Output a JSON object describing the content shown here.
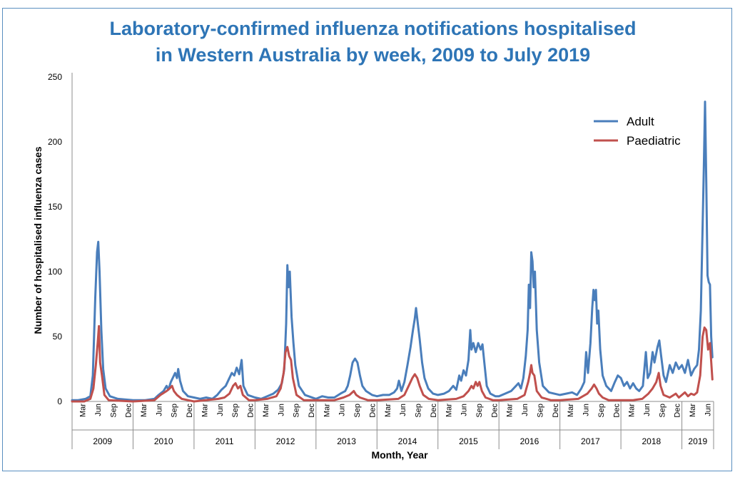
{
  "chart_data": {
    "type": "line",
    "title_lines": [
      "Laboratory-confirmed influenza notifications hospitalised",
      "in Western Australia by week, 2009 to July 2019"
    ],
    "xlabel": "Month, Year",
    "ylabel": "Number of hospitalised influenza cases",
    "ylim": [
      0,
      250
    ],
    "yticks": [
      0,
      50,
      100,
      150,
      200,
      250
    ],
    "legend_position": "top-right",
    "month_labels": [
      "Mar",
      "Jun",
      "Sep",
      "Dec"
    ],
    "years": [
      "2009",
      "2010",
      "2011",
      "2012",
      "2013",
      "2014",
      "2015",
      "2016",
      "2017",
      "2018",
      "2019"
    ],
    "x_unit": "years since start of 2009 (weekly)",
    "series": [
      {
        "name": "Adult",
        "color": "#4a7ebb",
        "points": [
          [
            0.0,
            1
          ],
          [
            0.1,
            1
          ],
          [
            0.22,
            2
          ],
          [
            0.3,
            4
          ],
          [
            0.34,
            20
          ],
          [
            0.38,
            80
          ],
          [
            0.41,
            115
          ],
          [
            0.43,
            123
          ],
          [
            0.45,
            100
          ],
          [
            0.48,
            55
          ],
          [
            0.51,
            25
          ],
          [
            0.55,
            10
          ],
          [
            0.62,
            4
          ],
          [
            0.75,
            2
          ],
          [
            1.0,
            1
          ],
          [
            1.2,
            1
          ],
          [
            1.35,
            2
          ],
          [
            1.42,
            5
          ],
          [
            1.5,
            8
          ],
          [
            1.55,
            12
          ],
          [
            1.58,
            9
          ],
          [
            1.62,
            15
          ],
          [
            1.66,
            19
          ],
          [
            1.69,
            22
          ],
          [
            1.72,
            18
          ],
          [
            1.74,
            25
          ],
          [
            1.77,
            16
          ],
          [
            1.82,
            8
          ],
          [
            1.9,
            4
          ],
          [
            2.0,
            3
          ],
          [
            2.1,
            2
          ],
          [
            2.2,
            3
          ],
          [
            2.3,
            2
          ],
          [
            2.38,
            5
          ],
          [
            2.45,
            9
          ],
          [
            2.52,
            12
          ],
          [
            2.58,
            18
          ],
          [
            2.62,
            22
          ],
          [
            2.66,
            20
          ],
          [
            2.7,
            26
          ],
          [
            2.74,
            21
          ],
          [
            2.78,
            32
          ],
          [
            2.81,
            12
          ],
          [
            2.88,
            5
          ],
          [
            3.0,
            3
          ],
          [
            3.1,
            2
          ],
          [
            3.2,
            4
          ],
          [
            3.3,
            6
          ],
          [
            3.38,
            9
          ],
          [
            3.44,
            14
          ],
          [
            3.48,
            25
          ],
          [
            3.51,
            60
          ],
          [
            3.53,
            105
          ],
          [
            3.55,
            88
          ],
          [
            3.57,
            100
          ],
          [
            3.6,
            65
          ],
          [
            3.63,
            45
          ],
          [
            3.66,
            28
          ],
          [
            3.72,
            12
          ],
          [
            3.82,
            5
          ],
          [
            4.0,
            2
          ],
          [
            4.1,
            4
          ],
          [
            4.2,
            3
          ],
          [
            4.3,
            3
          ],
          [
            4.4,
            6
          ],
          [
            4.48,
            8
          ],
          [
            4.52,
            12
          ],
          [
            4.56,
            20
          ],
          [
            4.6,
            30
          ],
          [
            4.64,
            33
          ],
          [
            4.68,
            30
          ],
          [
            4.72,
            20
          ],
          [
            4.76,
            12
          ],
          [
            4.82,
            8
          ],
          [
            4.92,
            5
          ],
          [
            5.0,
            4
          ],
          [
            5.1,
            5
          ],
          [
            5.2,
            5
          ],
          [
            5.28,
            7
          ],
          [
            5.33,
            10
          ],
          [
            5.36,
            16
          ],
          [
            5.4,
            8
          ],
          [
            5.45,
            15
          ],
          [
            5.5,
            28
          ],
          [
            5.55,
            42
          ],
          [
            5.59,
            55
          ],
          [
            5.62,
            64
          ],
          [
            5.64,
            72
          ],
          [
            5.67,
            60
          ],
          [
            5.7,
            48
          ],
          [
            5.74,
            30
          ],
          [
            5.78,
            18
          ],
          [
            5.84,
            10
          ],
          [
            5.92,
            6
          ],
          [
            6.0,
            5
          ],
          [
            6.1,
            6
          ],
          [
            6.18,
            8
          ],
          [
            6.25,
            12
          ],
          [
            6.3,
            9
          ],
          [
            6.35,
            20
          ],
          [
            6.38,
            16
          ],
          [
            6.42,
            24
          ],
          [
            6.46,
            20
          ],
          [
            6.5,
            32
          ],
          [
            6.53,
            55
          ],
          [
            6.55,
            40
          ],
          [
            6.58,
            45
          ],
          [
            6.62,
            38
          ],
          [
            6.66,
            45
          ],
          [
            6.7,
            40
          ],
          [
            6.73,
            44
          ],
          [
            6.76,
            30
          ],
          [
            6.8,
            12
          ],
          [
            6.86,
            6
          ],
          [
            6.94,
            4
          ],
          [
            7.0,
            4
          ],
          [
            7.1,
            6
          ],
          [
            7.2,
            8
          ],
          [
            7.28,
            12
          ],
          [
            7.32,
            14
          ],
          [
            7.36,
            10
          ],
          [
            7.4,
            18
          ],
          [
            7.44,
            35
          ],
          [
            7.47,
            55
          ],
          [
            7.49,
            90
          ],
          [
            7.51,
            72
          ],
          [
            7.53,
            115
          ],
          [
            7.55,
            108
          ],
          [
            7.57,
            88
          ],
          [
            7.59,
            100
          ],
          [
            7.62,
            55
          ],
          [
            7.66,
            30
          ],
          [
            7.72,
            12
          ],
          [
            7.82,
            7
          ],
          [
            8.0,
            5
          ],
          [
            8.1,
            6
          ],
          [
            8.2,
            7
          ],
          [
            8.28,
            5
          ],
          [
            8.35,
            10
          ],
          [
            8.4,
            15
          ],
          [
            8.43,
            38
          ],
          [
            8.46,
            22
          ],
          [
            8.5,
            45
          ],
          [
            8.53,
            72
          ],
          [
            8.55,
            86
          ],
          [
            8.57,
            78
          ],
          [
            8.59,
            86
          ],
          [
            8.61,
            60
          ],
          [
            8.63,
            70
          ],
          [
            8.66,
            40
          ],
          [
            8.7,
            20
          ],
          [
            8.76,
            12
          ],
          [
            8.84,
            8
          ],
          [
            8.9,
            15
          ],
          [
            8.95,
            20
          ],
          [
            9.0,
            18
          ],
          [
            9.05,
            12
          ],
          [
            9.1,
            15
          ],
          [
            9.15,
            10
          ],
          [
            9.2,
            14
          ],
          [
            9.25,
            10
          ],
          [
            9.3,
            8
          ],
          [
            9.36,
            12
          ],
          [
            9.41,
            38
          ],
          [
            9.44,
            18
          ],
          [
            9.48,
            22
          ],
          [
            9.52,
            38
          ],
          [
            9.55,
            30
          ],
          [
            9.6,
            42
          ],
          [
            9.63,
            47
          ],
          [
            9.66,
            35
          ],
          [
            9.7,
            20
          ],
          [
            9.74,
            15
          ],
          [
            9.8,
            28
          ],
          [
            9.85,
            22
          ],
          [
            9.9,
            30
          ],
          [
            9.95,
            25
          ],
          [
            10.0,
            28
          ],
          [
            10.05,
            22
          ],
          [
            10.1,
            32
          ],
          [
            10.15,
            20
          ],
          [
            10.2,
            25
          ],
          [
            10.25,
            28
          ],
          [
            10.28,
            40
          ],
          [
            10.31,
            70
          ],
          [
            10.34,
            135
          ],
          [
            10.36,
            180
          ],
          [
            10.38,
            231
          ],
          [
            10.4,
            170
          ],
          [
            10.42,
            97
          ],
          [
            10.44,
            92
          ],
          [
            10.46,
            90
          ],
          [
            10.48,
            50
          ],
          [
            10.5,
            34
          ]
        ]
      },
      {
        "name": "Paediatric",
        "color": "#c0504d",
        "points": [
          [
            0.0,
            0
          ],
          [
            0.2,
            0
          ],
          [
            0.3,
            2
          ],
          [
            0.35,
            10
          ],
          [
            0.39,
            28
          ],
          [
            0.42,
            45
          ],
          [
            0.44,
            58
          ],
          [
            0.46,
            30
          ],
          [
            0.49,
            20
          ],
          [
            0.53,
            5
          ],
          [
            0.6,
            1
          ],
          [
            1.0,
            0
          ],
          [
            1.35,
            1
          ],
          [
            1.45,
            5
          ],
          [
            1.55,
            8
          ],
          [
            1.6,
            10
          ],
          [
            1.64,
            12
          ],
          [
            1.67,
            8
          ],
          [
            1.72,
            5
          ],
          [
            1.8,
            2
          ],
          [
            1.9,
            1
          ],
          [
            2.0,
            0
          ],
          [
            2.4,
            2
          ],
          [
            2.5,
            3
          ],
          [
            2.58,
            6
          ],
          [
            2.64,
            12
          ],
          [
            2.68,
            14
          ],
          [
            2.72,
            10
          ],
          [
            2.76,
            12
          ],
          [
            2.8,
            5
          ],
          [
            2.9,
            1
          ],
          [
            3.0,
            1
          ],
          [
            3.2,
            2
          ],
          [
            3.35,
            4
          ],
          [
            3.42,
            10
          ],
          [
            3.47,
            22
          ],
          [
            3.5,
            38
          ],
          [
            3.53,
            42
          ],
          [
            3.56,
            35
          ],
          [
            3.59,
            32
          ],
          [
            3.62,
            18
          ],
          [
            3.68,
            5
          ],
          [
            3.8,
            1
          ],
          [
            4.0,
            1
          ],
          [
            4.3,
            1
          ],
          [
            4.45,
            3
          ],
          [
            4.55,
            5
          ],
          [
            4.62,
            8
          ],
          [
            4.66,
            5
          ],
          [
            4.72,
            3
          ],
          [
            4.85,
            1
          ],
          [
            5.0,
            1
          ],
          [
            5.35,
            2
          ],
          [
            5.45,
            5
          ],
          [
            5.52,
            12
          ],
          [
            5.58,
            18
          ],
          [
            5.62,
            21
          ],
          [
            5.66,
            18
          ],
          [
            5.7,
            12
          ],
          [
            5.76,
            5
          ],
          [
            5.85,
            2
          ],
          [
            6.0,
            1
          ],
          [
            6.3,
            2
          ],
          [
            6.42,
            4
          ],
          [
            6.5,
            8
          ],
          [
            6.55,
            12
          ],
          [
            6.58,
            10
          ],
          [
            6.62,
            15
          ],
          [
            6.65,
            12
          ],
          [
            6.68,
            15
          ],
          [
            6.72,
            8
          ],
          [
            6.78,
            3
          ],
          [
            6.9,
            1
          ],
          [
            7.0,
            1
          ],
          [
            7.3,
            2
          ],
          [
            7.42,
            5
          ],
          [
            7.48,
            15
          ],
          [
            7.51,
            22
          ],
          [
            7.53,
            28
          ],
          [
            7.55,
            22
          ],
          [
            7.58,
            20
          ],
          [
            7.62,
            8
          ],
          [
            7.7,
            3
          ],
          [
            7.85,
            1
          ],
          [
            8.0,
            1
          ],
          [
            8.3,
            2
          ],
          [
            8.45,
            6
          ],
          [
            8.52,
            10
          ],
          [
            8.56,
            13
          ],
          [
            8.6,
            10
          ],
          [
            8.64,
            6
          ],
          [
            8.7,
            3
          ],
          [
            8.8,
            1
          ],
          [
            9.0,
            1
          ],
          [
            9.2,
            1
          ],
          [
            9.35,
            2
          ],
          [
            9.45,
            6
          ],
          [
            9.52,
            10
          ],
          [
            9.58,
            15
          ],
          [
            9.62,
            22
          ],
          [
            9.65,
            12
          ],
          [
            9.7,
            5
          ],
          [
            9.8,
            3
          ],
          [
            9.9,
            6
          ],
          [
            9.95,
            3
          ],
          [
            10.0,
            5
          ],
          [
            10.05,
            7
          ],
          [
            10.1,
            4
          ],
          [
            10.15,
            6
          ],
          [
            10.2,
            5
          ],
          [
            10.25,
            7
          ],
          [
            10.3,
            20
          ],
          [
            10.34,
            50
          ],
          [
            10.37,
            57
          ],
          [
            10.4,
            55
          ],
          [
            10.43,
            40
          ],
          [
            10.46,
            45
          ],
          [
            10.5,
            17
          ]
        ]
      }
    ]
  }
}
